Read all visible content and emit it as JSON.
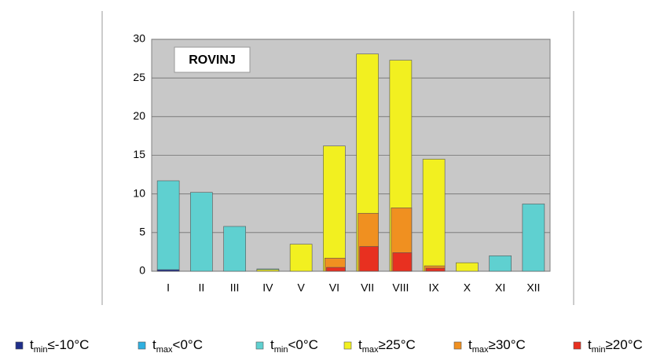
{
  "chart_data": {
    "type": "bar",
    "title": "ROVINJ",
    "categories": [
      "I",
      "II",
      "III",
      "IV",
      "V",
      "VI",
      "VII",
      "VIII",
      "IX",
      "X",
      "XI",
      "XII"
    ],
    "series": [
      {
        "name": "tmin≤-10°C",
        "color": "#1f2f8a",
        "values": [
          0.2,
          0,
          0,
          0,
          0,
          0,
          0,
          0,
          0,
          0,
          0,
          0
        ]
      },
      {
        "name": "tmax<0°C",
        "color": "#2fb0e0",
        "values": [
          0,
          0,
          0,
          0,
          0,
          0,
          0,
          0,
          0,
          0,
          0,
          0
        ]
      },
      {
        "name": "tmin<0°C",
        "color": "#5fd0d0",
        "values": [
          11.7,
          10.2,
          5.8,
          0.3,
          0,
          0,
          0,
          0,
          0,
          0,
          2.0,
          8.7
        ]
      },
      {
        "name": "tmax≥25°C",
        "color": "#f2f020",
        "values": [
          0,
          0,
          0,
          0.2,
          3.5,
          16.2,
          28.1,
          27.3,
          14.5,
          1.1,
          0,
          0
        ]
      },
      {
        "name": "tmax≥30°C",
        "color": "#f09020",
        "values": [
          0,
          0,
          0,
          0,
          0,
          1.7,
          7.5,
          8.2,
          0.7,
          0,
          0,
          0
        ]
      },
      {
        "name": "tmin≥20°C",
        "color": "#e83020",
        "values": [
          0,
          0,
          0,
          0,
          0,
          0.5,
          3.2,
          2.4,
          0.4,
          0,
          0,
          0
        ]
      }
    ],
    "ylim": [
      0,
      30
    ],
    "yticks": [
      0,
      5,
      10,
      15,
      20,
      25,
      30
    ],
    "grid": true
  }
}
